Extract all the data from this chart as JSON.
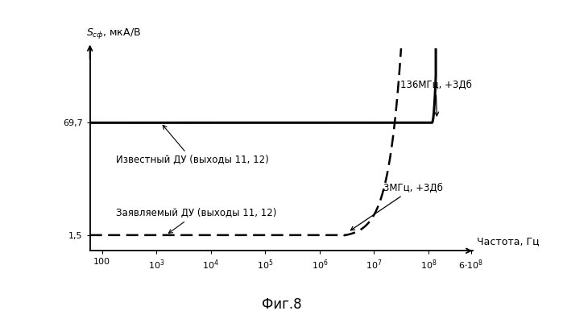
{
  "title": "Фиг.8",
  "ylabel": "Sсф, мкА/В",
  "xlabel": "Частота, Гц",
  "xmin": 60,
  "xmax": 650000000.0,
  "ymin": -8,
  "ymax": 115,
  "y_known": 69.7,
  "y_claimed": 1.5,
  "label_known": "Известный ДУ (выходы 11, 12)",
  "label_claimed": "Заявляемый ДУ (выходы 11, 12)",
  "annotation_known": "136МГц, +3Дб",
  "annotation_claimed": "3МГц, +3Дб",
  "freq_known_3db": 136000000.0,
  "freq_claimed_3db": 3000000.0,
  "tick_values": [
    100,
    1000,
    10000,
    100000,
    1000000,
    10000000,
    100000000,
    600000000
  ],
  "background_color": "#ffffff",
  "fontsize_title": 12,
  "fontsize_labels": 9,
  "fontsize_ticks": 8,
  "fontsize_annotations": 8.5
}
